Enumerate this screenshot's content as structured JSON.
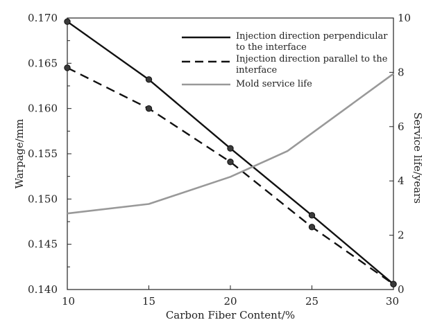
{
  "chart_data": {
    "type": "line",
    "xlabel": "Carbon Fiber Content/%",
    "ylabel_left": "Warpage/mm",
    "ylabel_right": "Service life/years",
    "x_ticks": [
      10,
      15,
      20,
      25,
      30
    ],
    "y_left_ticks": [
      "0.170",
      "0.165",
      "0.160",
      "0.155",
      "0.150",
      "0.145",
      "0.140"
    ],
    "y_right_ticks": [
      "10",
      "8",
      "6",
      "4",
      "2",
      "0"
    ],
    "xlim": [
      10,
      30
    ],
    "ylim_left": [
      0.14,
      0.17
    ],
    "ylim_right": [
      0,
      10
    ],
    "grid": false,
    "legend_position": "top-right",
    "series": [
      {
        "name": "Injection direction perpendicular to the interface",
        "legend_lines": [
          "Injection direction perpendicular",
          "to the interface"
        ],
        "axis": "left",
        "style": "solid",
        "color": "#111111",
        "markers": true,
        "x": [
          10,
          15,
          20,
          25,
          30
        ],
        "values": [
          0.1696,
          0.1632,
          0.1556,
          0.1482,
          0.1406
        ]
      },
      {
        "name": "Injection direction parallel to the interface",
        "legend_lines": [
          "Injection direction parallel to the",
          "interface"
        ],
        "axis": "left",
        "style": "dashed",
        "color": "#111111",
        "markers": true,
        "x": [
          10,
          15,
          20,
          25,
          30
        ],
        "values": [
          0.1645,
          0.16,
          0.1541,
          0.1469,
          0.1406
        ]
      },
      {
        "name": "Mold service life",
        "legend_lines": [
          "Mold service life"
        ],
        "axis": "right",
        "style": "solid",
        "color": "#999999",
        "markers": false,
        "x": [
          10,
          15,
          20,
          23.5,
          30
        ],
        "values": [
          2.8,
          3.15,
          4.15,
          5.1,
          7.95
        ]
      }
    ]
  }
}
